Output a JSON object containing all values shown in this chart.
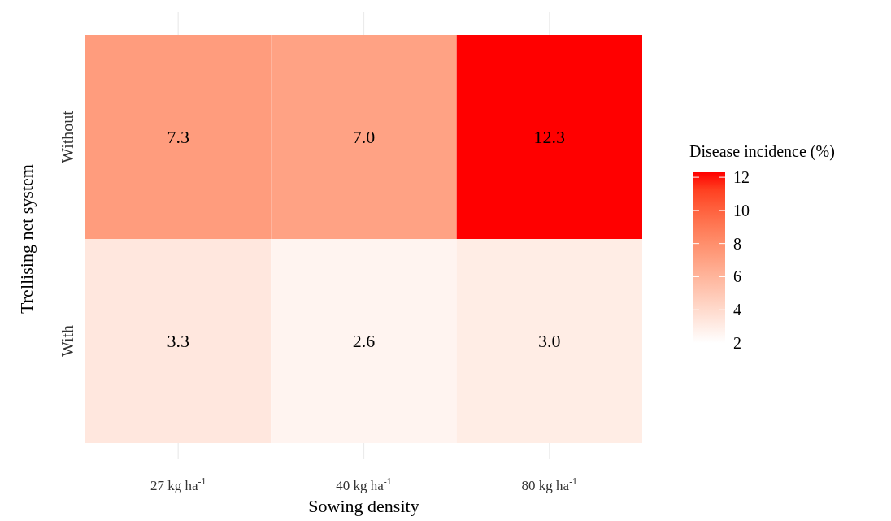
{
  "chart_data": {
    "type": "heatmap",
    "xlabel": "Sowing density",
    "ylabel": "Trellising net system",
    "clabel": "Disease incidence (%)",
    "categories": [
      "27 kg ha$^{-1}$",
      "40 kg ha$^{-1}$",
      "80 kg ha$^{-1}$"
    ],
    "y_categories": [
      "Without",
      "With"
    ],
    "cells": [
      [
        7.3,
        7.0,
        12.3
      ],
      [
        3.3,
        2.6,
        3.0
      ]
    ],
    "cell_labels": [
      [
        "7.3",
        "7.0",
        "12.3"
      ],
      [
        "3.3",
        "2.6",
        "3.0"
      ]
    ],
    "clim": [
      2,
      12.3
    ],
    "cticks": [
      2,
      4,
      6,
      8,
      10,
      12
    ],
    "grid": true
  }
}
